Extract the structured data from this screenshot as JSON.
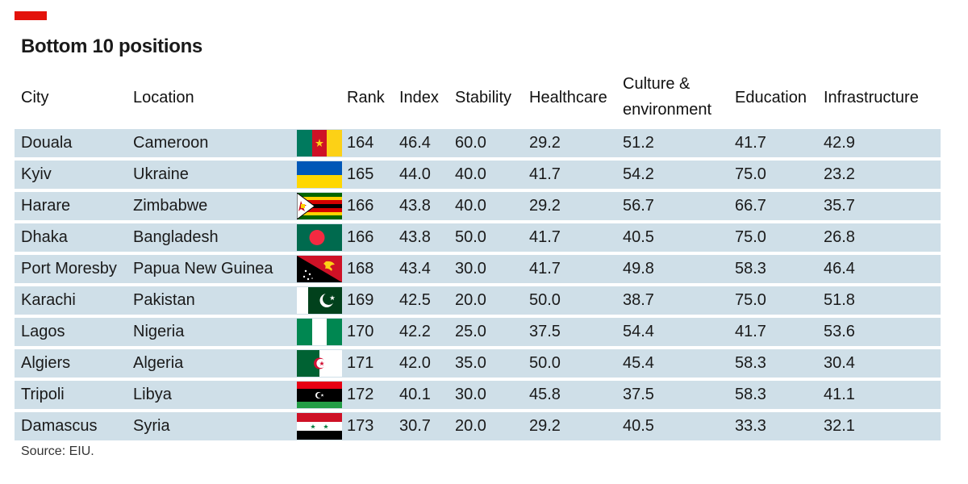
{
  "title": "Bottom 10 positions",
  "source": "Source: EIU.",
  "colors": {
    "accent": "#e3120b",
    "row_background": "#cfdfe8"
  },
  "chart_data": {
    "type": "table",
    "title": "Bottom 10 positions",
    "columns": [
      "City",
      "Location",
      "Rank",
      "Index",
      "Stability",
      "Healthcare",
      "Culture & environment",
      "Education",
      "Infrastructure"
    ],
    "rows": [
      {
        "city": "Douala",
        "location": "Cameroon",
        "flag": "cameroon-flag",
        "rank": "164",
        "index": "46.4",
        "stability": "60.0",
        "healthcare": "29.2",
        "culture": "51.2",
        "education": "41.7",
        "infrastructure": "42.9"
      },
      {
        "city": "Kyiv",
        "location": "Ukraine",
        "flag": "ukraine-flag",
        "rank": "165",
        "index": "44.0",
        "stability": "40.0",
        "healthcare": "41.7",
        "culture": "54.2",
        "education": "75.0",
        "infrastructure": "23.2"
      },
      {
        "city": "Harare",
        "location": "Zimbabwe",
        "flag": "zimbabwe-flag",
        "rank": "166",
        "index": "43.8",
        "stability": "40.0",
        "healthcare": "29.2",
        "culture": "56.7",
        "education": "66.7",
        "infrastructure": "35.7"
      },
      {
        "city": "Dhaka",
        "location": "Bangladesh",
        "flag": "bangladesh-flag",
        "rank": "166",
        "index": "43.8",
        "stability": "50.0",
        "healthcare": "41.7",
        "culture": "40.5",
        "education": "75.0",
        "infrastructure": "26.8"
      },
      {
        "city": "Port Moresby",
        "location": "Papua New Guinea",
        "flag": "papua-new-guinea-flag",
        "rank": "168",
        "index": "43.4",
        "stability": "30.0",
        "healthcare": "41.7",
        "culture": "49.8",
        "education": "58.3",
        "infrastructure": "46.4"
      },
      {
        "city": "Karachi",
        "location": "Pakistan",
        "flag": "pakistan-flag",
        "rank": "169",
        "index": "42.5",
        "stability": "20.0",
        "healthcare": "50.0",
        "culture": "38.7",
        "education": "75.0",
        "infrastructure": "51.8"
      },
      {
        "city": "Lagos",
        "location": "Nigeria",
        "flag": "nigeria-flag",
        "rank": "170",
        "index": "42.2",
        "stability": "25.0",
        "healthcare": "37.5",
        "culture": "54.4",
        "education": "41.7",
        "infrastructure": "53.6"
      },
      {
        "city": "Algiers",
        "location": "Algeria",
        "flag": "algeria-flag",
        "rank": "171",
        "index": "42.0",
        "stability": "35.0",
        "healthcare": "50.0",
        "culture": "45.4",
        "education": "58.3",
        "infrastructure": "30.4"
      },
      {
        "city": "Tripoli",
        "location": "Libya",
        "flag": "libya-flag",
        "rank": "172",
        "index": "40.1",
        "stability": "30.0",
        "healthcare": "45.8",
        "culture": "37.5",
        "education": "58.3",
        "infrastructure": "41.1"
      },
      {
        "city": "Damascus",
        "location": "Syria",
        "flag": "syria-flag",
        "rank": "173",
        "index": "30.7",
        "stability": "20.0",
        "healthcare": "29.2",
        "culture": "40.5",
        "education": "33.3",
        "infrastructure": "32.1"
      }
    ]
  }
}
